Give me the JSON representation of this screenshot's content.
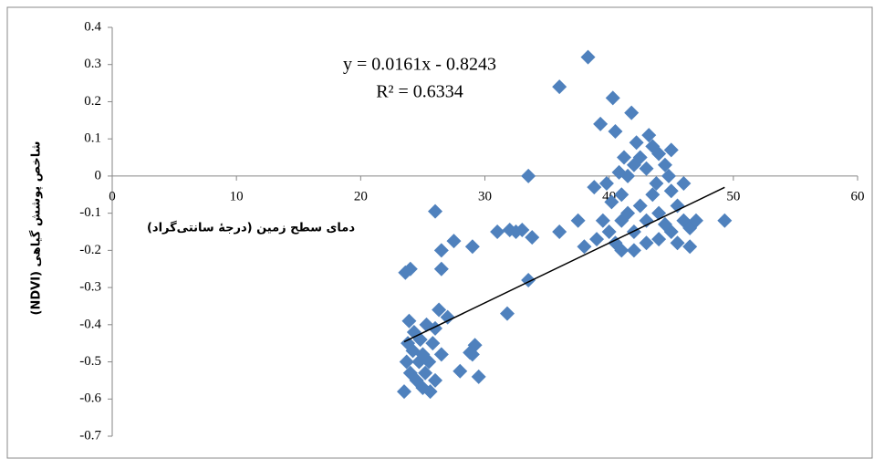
{
  "chart_data": {
    "type": "scatter",
    "x_label": "دمای سطح زمین (درجۀ سانتی‌گراد)",
    "y_label": "شاخص پوشش گیاهی (NDVI)",
    "color": "#4f81bd",
    "xlim": [
      0,
      60
    ],
    "xticks": [
      0,
      10,
      20,
      30,
      40,
      50,
      60
    ],
    "ylim": [
      -0.7,
      0.4
    ],
    "yticks": [
      0.4,
      0.3,
      0.2,
      0.1,
      0,
      -0.1,
      -0.2,
      -0.3,
      -0.4,
      -0.5,
      -0.6,
      -0.7
    ],
    "trendline": {
      "equation": "y = 0.0161x - 0.8243",
      "r_squared": "R² = 0.6334",
      "slope": 0.0161,
      "intercept": -0.8243,
      "x": [
        23.5,
        49.3
      ],
      "color": "#000000"
    },
    "x": [
      38.3,
      36,
      40.3,
      41.8,
      39.3,
      40.5,
      43.2,
      33.5,
      26,
      24,
      23.6,
      26.5,
      26.5,
      27.5,
      29,
      31,
      32,
      32.5,
      33,
      33.8,
      33.5,
      31.8,
      49.3,
      38.8,
      37.5,
      36,
      40,
      40.5,
      41,
      41,
      41.5,
      41.5,
      42,
      42,
      42,
      42.5,
      42.5,
      43,
      43,
      43,
      43.5,
      43.5,
      44,
      44,
      44,
      44.5,
      44.5,
      45,
      45,
      45,
      45.5,
      45.5,
      46,
      46,
      46.5,
      47,
      46.5,
      41,
      39.5,
      39,
      38,
      40.2,
      41.2,
      42.2,
      40.8,
      39.8,
      43.8,
      44.8,
      23.5,
      23.7,
      23.8,
      23.9,
      24,
      24.2,
      24.3,
      24.5,
      24.7,
      24.8,
      25,
      25,
      25.2,
      25.3,
      25.5,
      25.8,
      26,
      26,
      26.3,
      26.5,
      27,
      25.6,
      28,
      29,
      29.2,
      29.5,
      28.8
    ],
    "values": [
      0.32,
      0.24,
      0.21,
      0.17,
      0.14,
      0.12,
      0.11,
      0.0,
      -0.095,
      -0.25,
      -0.26,
      -0.2,
      -0.25,
      -0.175,
      -0.19,
      -0.15,
      -0.145,
      -0.15,
      -0.145,
      -0.165,
      -0.28,
      -0.37,
      -0.12,
      -0.03,
      -0.12,
      -0.15,
      -0.15,
      -0.18,
      -0.12,
      -0.05,
      0.0,
      -0.1,
      0.03,
      -0.15,
      -0.2,
      0.05,
      -0.08,
      0.02,
      -0.12,
      -0.18,
      0.08,
      -0.05,
      0.06,
      -0.1,
      -0.17,
      0.03,
      -0.13,
      0.07,
      -0.04,
      -0.15,
      -0.08,
      -0.18,
      -0.02,
      -0.12,
      -0.14,
      -0.12,
      -0.19,
      -0.2,
      -0.12,
      -0.17,
      -0.19,
      -0.07,
      0.05,
      0.09,
      0.01,
      -0.02,
      -0.02,
      0.0,
      -0.58,
      -0.5,
      -0.45,
      -0.39,
      -0.53,
      -0.47,
      -0.42,
      -0.55,
      -0.5,
      -0.44,
      -0.57,
      -0.48,
      -0.53,
      -0.4,
      -0.5,
      -0.45,
      -0.55,
      -0.41,
      -0.36,
      -0.48,
      -0.38,
      -0.58,
      -0.525,
      -0.48,
      -0.455,
      -0.54,
      -0.475
    ]
  }
}
